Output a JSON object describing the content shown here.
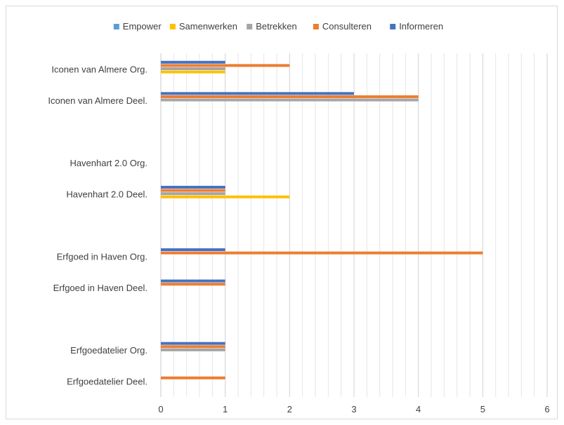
{
  "chart_data": {
    "type": "bar",
    "orientation": "horizontal",
    "title": "",
    "xlabel": "",
    "ylabel": "",
    "xlim": [
      0,
      6
    ],
    "x_ticks": [
      0,
      1,
      2,
      3,
      4,
      5,
      6
    ],
    "minor_gridlines": true,
    "legend_position": "top",
    "categories": [
      "Iconen van Almere Org.",
      "Iconen van Almere Deel.",
      "",
      "Havenhart 2.0 Org.",
      "Havenhart 2.0 Deel.",
      "",
      "Erfgoed in Haven Org.",
      "Erfgoed in Haven Deel.",
      "",
      "Erfgoedatelier Org.",
      "Erfgoedatelier Deel."
    ],
    "series": [
      {
        "name": "Empower",
        "color": "#5B9BD5",
        "values": [
          0,
          0,
          0,
          0,
          0,
          0,
          0,
          0,
          0,
          0,
          0
        ]
      },
      {
        "name": "Samenwerken",
        "color": "#FFC000",
        "values": [
          1,
          0,
          0,
          0,
          2,
          0,
          0,
          0,
          0,
          0,
          0
        ]
      },
      {
        "name": "Betrekken",
        "color": "#A5A5A5",
        "values": [
          1,
          4,
          0,
          0,
          1,
          0,
          0,
          0,
          0,
          1,
          0
        ]
      },
      {
        "name": "Consulteren",
        "color": "#ED7D31",
        "values": [
          2,
          4,
          0,
          0,
          1,
          0,
          5,
          1,
          0,
          1,
          1
        ]
      },
      {
        "name": "Informeren",
        "color": "#4472C4",
        "values": [
          1,
          3,
          0,
          0,
          1,
          0,
          1,
          1,
          0,
          1,
          0
        ]
      }
    ]
  }
}
